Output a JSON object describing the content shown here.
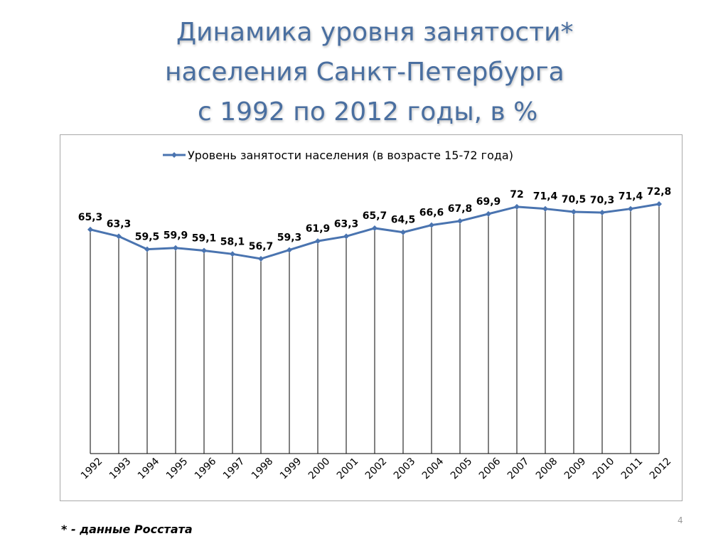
{
  "slide": {
    "title_line1": "Динамика уровня занятости*",
    "title_line2": "населения Санкт-Петербурга",
    "title_line3": "с 1992 по 2012 годы, в %",
    "footnote": "* - данные Росстата",
    "page_number": "4"
  },
  "colors": {
    "series": "#4a74b0",
    "title": "#4a6fa0"
  },
  "chart_data": {
    "type": "line",
    "title": "",
    "xlabel": "",
    "ylabel": "",
    "legend": "top",
    "grid": "vertical lines only",
    "categories": [
      "1992",
      "1993",
      "1994",
      "1995",
      "1996",
      "1997",
      "1998",
      "1999",
      "2000",
      "2001",
      "2002",
      "2003",
      "2004",
      "2005",
      "2006",
      "2007",
      "2008",
      "2009",
      "2010",
      "2011",
      "2012"
    ],
    "series": [
      {
        "name": "Уровень занятости населения (в возрасте 15-72 года)",
        "values": [
          65.3,
          63.3,
          59.5,
          59.9,
          59.1,
          58.1,
          56.7,
          59.3,
          61.9,
          63.3,
          65.7,
          64.5,
          66.6,
          67.8,
          69.9,
          72,
          71.4,
          70.5,
          70.3,
          71.4,
          72.8
        ],
        "labels": [
          "65,3",
          "63,3",
          "59,5",
          "59,9",
          "59,1",
          "58,1",
          "56,7",
          "59,3",
          "61,9",
          "63,3",
          "65,7",
          "64,5",
          "66,6",
          "67,8",
          "69,9",
          "72",
          "71,4",
          "70,5",
          "70,3",
          "71,4",
          "72,8"
        ]
      }
    ]
  }
}
